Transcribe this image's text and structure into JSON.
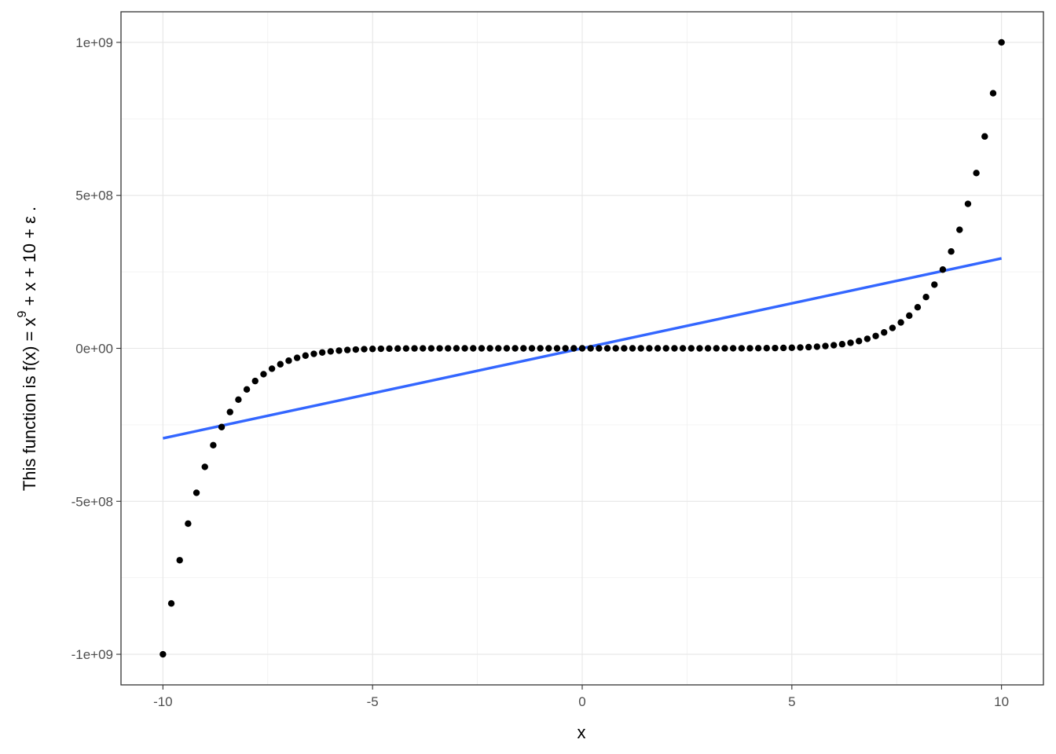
{
  "chart_data": {
    "type": "scatter",
    "title": "",
    "xlabel": "x",
    "ylabel": {
      "prefix": "This function is  f(x) = x",
      "superscript": "9",
      "suffix": " + x + 10 + ε ."
    },
    "xlim": [
      -11,
      11
    ],
    "ylim": [
      -1100000000,
      1100000000
    ],
    "x_ticks": [
      -10,
      -5,
      0,
      5,
      10
    ],
    "x_tick_labels": [
      "-10",
      "-5",
      "0",
      "5",
      "10"
    ],
    "y_ticks": [
      -1000000000,
      -500000000,
      0,
      500000000,
      1000000000
    ],
    "y_tick_labels": [
      "-1e+09",
      "-5e+08",
      "0e+00",
      "5e+08",
      "1e+09"
    ],
    "grid": true,
    "series": [
      {
        "type": "scatter",
        "x_start": -10,
        "x_end": 10,
        "x_step": 0.2,
        "function": "x^9 + x + 10",
        "color": "#000000"
      },
      {
        "type": "line",
        "x": [
          -10,
          10
        ],
        "y": [
          -294000000,
          294000000
        ],
        "color": "#3366FF"
      }
    ]
  }
}
